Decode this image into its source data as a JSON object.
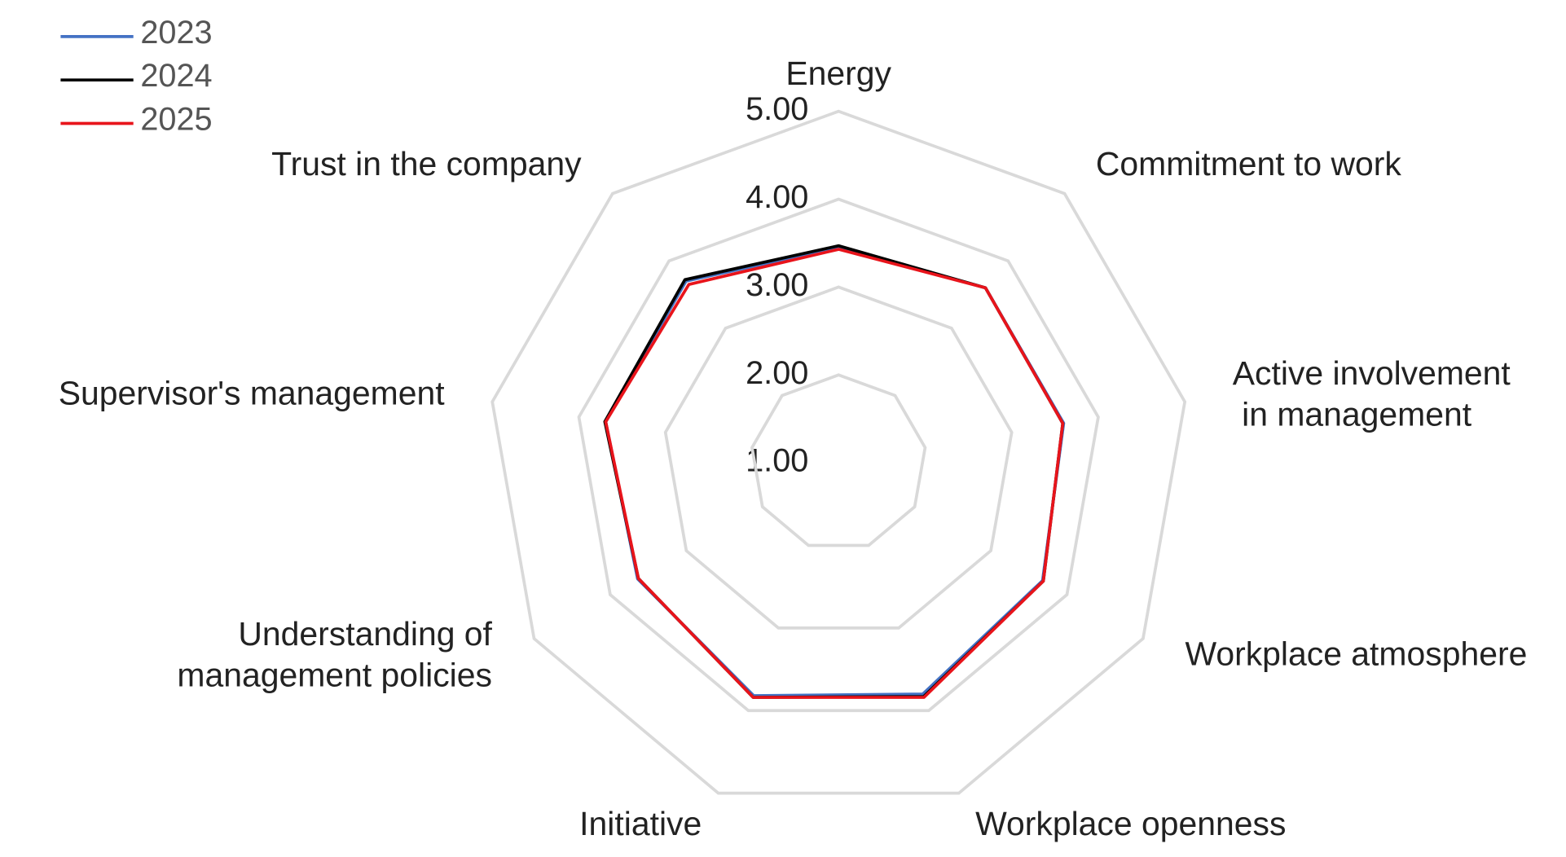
{
  "chart_data": {
    "type": "radar",
    "categories": [
      "Energy",
      "Commitment to work",
      "Active involvement in management",
      "Workplace atmosphere",
      "Workplace openness",
      "Initiative",
      "Understanding of management policies",
      "Supervisor's management",
      "Trust in the company"
    ],
    "series": [
      {
        "name": "2023",
        "color": "#4472c4",
        "values": [
          3.45,
          3.6,
          3.6,
          3.68,
          3.8,
          3.82,
          3.64,
          3.69,
          3.7
        ]
      },
      {
        "name": "2024",
        "color": "#000000",
        "values": [
          3.47,
          3.6,
          3.59,
          3.69,
          3.83,
          3.84,
          3.63,
          3.7,
          3.72
        ]
      },
      {
        "name": "2025",
        "color": "#e8141b",
        "values": [
          3.43,
          3.6,
          3.59,
          3.69,
          3.84,
          3.84,
          3.63,
          3.69,
          3.65
        ]
      }
    ],
    "ylim": [
      1,
      5
    ],
    "yticks": [
      {
        "value": 1,
        "label": "1.00"
      },
      {
        "value": 2,
        "label": "2.00"
      },
      {
        "value": 3,
        "label": "3.00"
      },
      {
        "value": 4,
        "label": "4.00"
      },
      {
        "value": 5,
        "label": "5.00"
      }
    ],
    "grid": true,
    "legend": "top-left"
  }
}
